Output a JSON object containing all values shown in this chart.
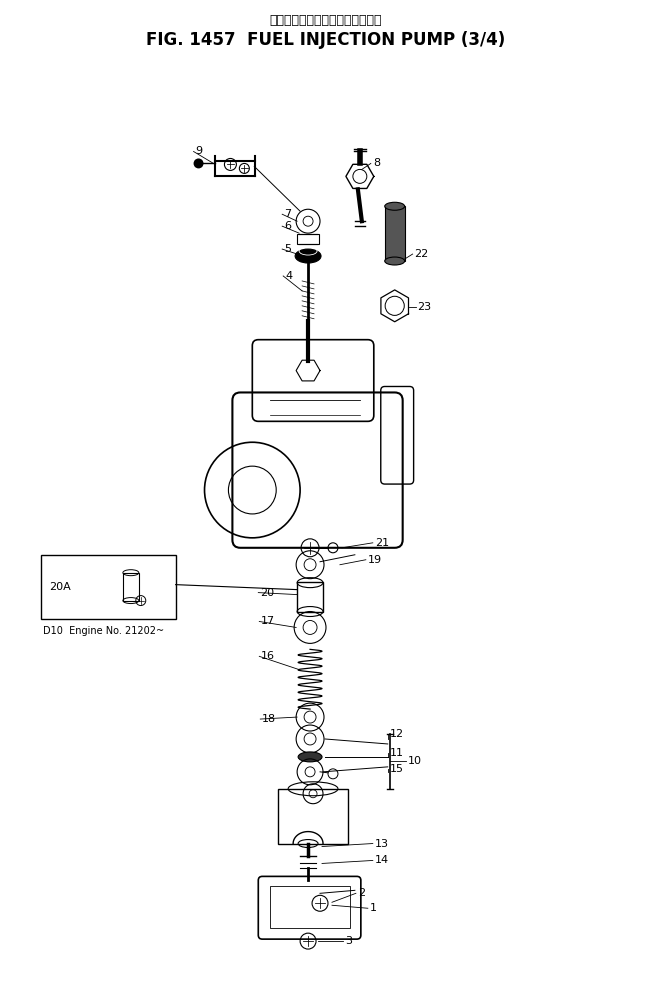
{
  "title_japanese": "フュエルインジェクションポンプ",
  "title_english": "FIG. 1457  FUEL INJECTION PUMP (3/4)",
  "background_color": "#ffffff",
  "fig_width": 6.52,
  "fig_height": 10.0,
  "dpi": 100
}
